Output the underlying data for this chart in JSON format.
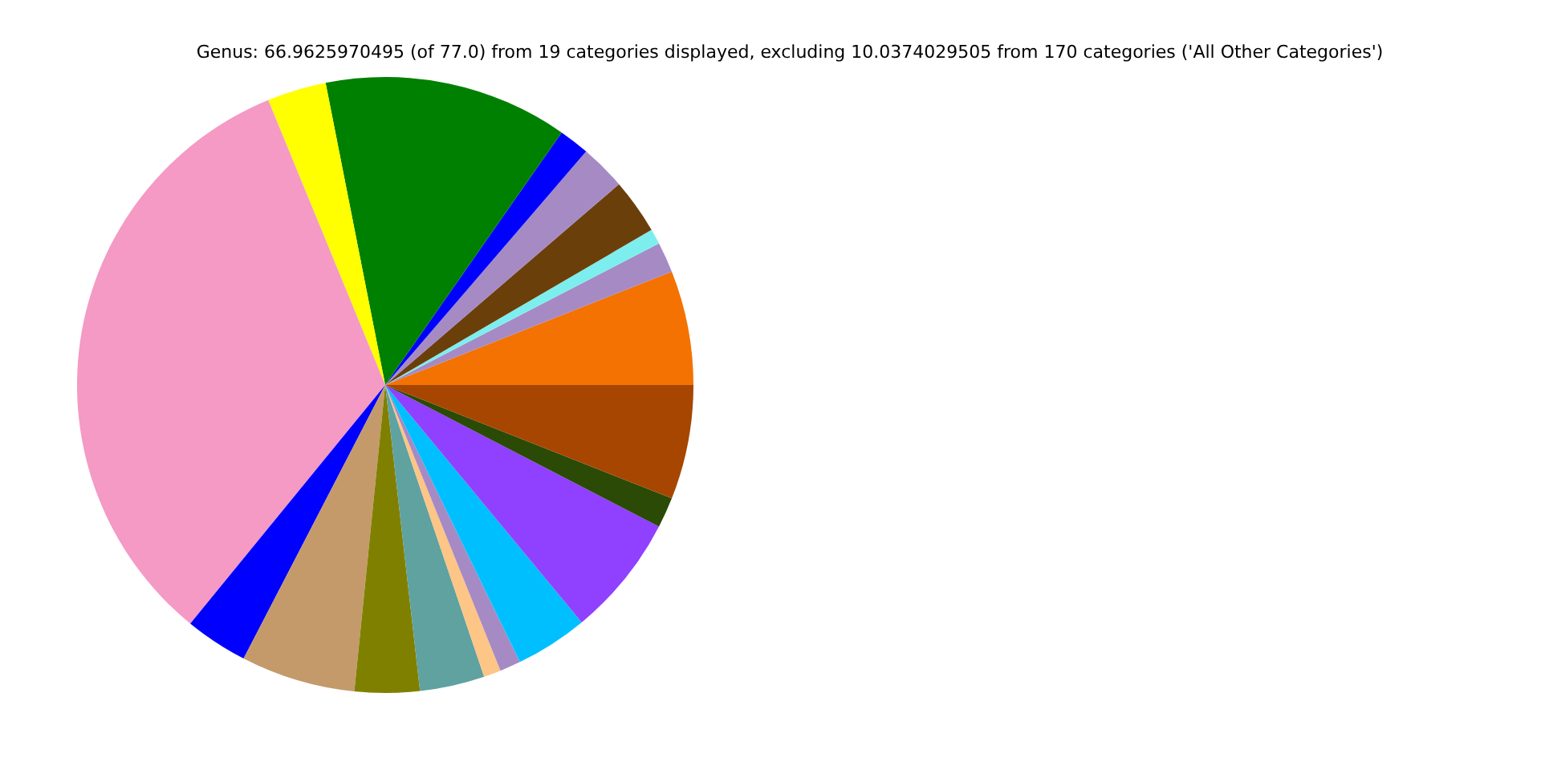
{
  "chart_data": {
    "type": "pie",
    "title": "Genus: 66.9625970495 (of 77.0) from 19 categories displayed, excluding 10.0374029505 from 170 categories ('All Other Categories')",
    "categories": [
      null,
      null,
      null,
      null,
      null,
      null,
      null,
      null,
      null,
      null,
      null,
      null,
      null,
      null,
      null,
      null,
      null,
      null,
      null
    ],
    "values": [
      6.0,
      1.6,
      0.8,
      2.9,
      2.4,
      1.6,
      12.8,
      3.1,
      32.9,
      3.3,
      6.0,
      3.4,
      3.4,
      0.9,
      1.1,
      3.8,
      6.4,
      1.6,
      6.0
    ],
    "colors": [
      "#f37202",
      "#a68ac4",
      "#7deeee",
      "#6b3f0a",
      "#a68ac4",
      "#0000ff",
      "#008000",
      "#ffff00",
      "#f49ac4",
      "#0000ff",
      "#c49a6b",
      "#808000",
      "#5fa2a0",
      "#fdc586",
      "#a68ac4",
      "#00bfff",
      "#9040ff",
      "#2a4a06",
      "#a64600"
    ]
  }
}
